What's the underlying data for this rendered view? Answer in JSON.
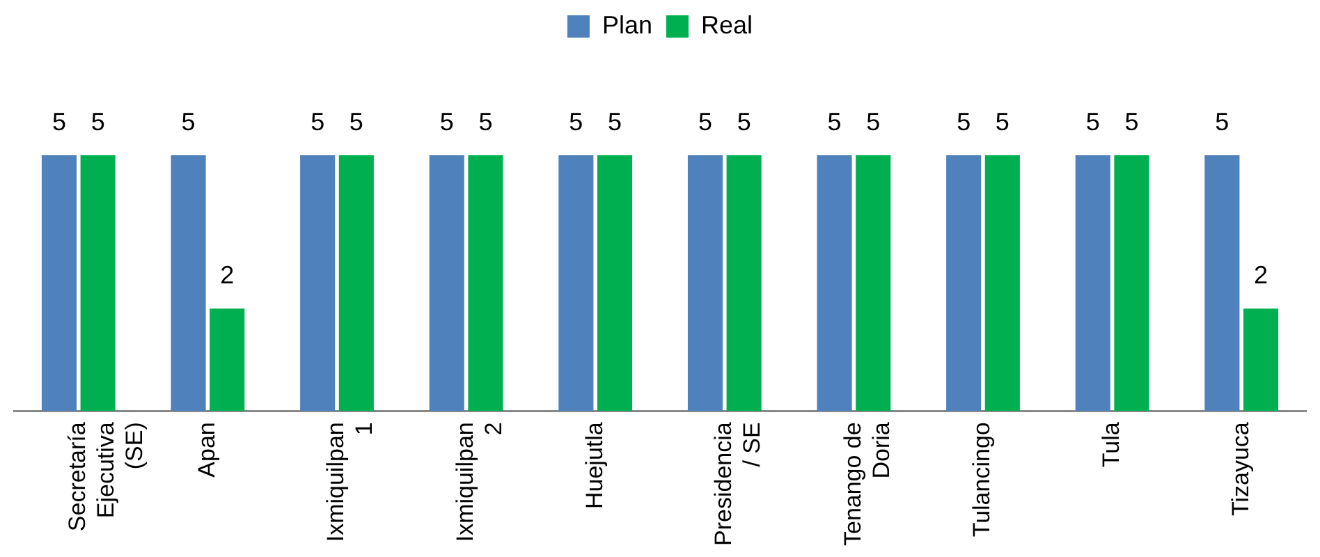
{
  "chart_data": {
    "type": "bar",
    "categories": [
      "Secretaría Ejecutiva (SE)",
      "Apan",
      "Ixmiquilpan 1",
      "Ixmiquilpan 2",
      "Huejutla",
      "Presidencia / SE",
      "Tenango de Doria",
      "Tulancingo",
      "Tula",
      "Tizayuca"
    ],
    "series": [
      {
        "name": "Plan",
        "color": "#4f81bd",
        "values": [
          5,
          5,
          5,
          5,
          5,
          5,
          5,
          5,
          5,
          5
        ]
      },
      {
        "name": "Real",
        "color": "#00b050",
        "values": [
          5,
          2,
          5,
          5,
          5,
          5,
          5,
          5,
          5,
          2
        ]
      }
    ],
    "data_labels": true,
    "legend": "top",
    "grid": false
  }
}
